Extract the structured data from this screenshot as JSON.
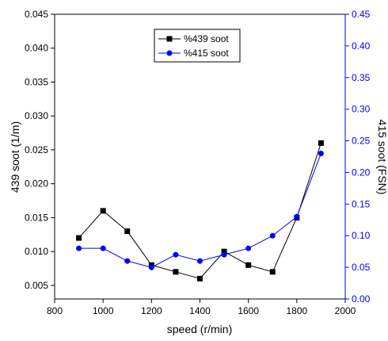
{
  "chart_data": {
    "type": "line",
    "title": "",
    "xlabel": "speed (r/min)",
    "ylabel_left": "439 soot (1/m)",
    "ylabel_right": "415 soot (FSN)",
    "xlim": [
      800,
      2000
    ],
    "ylim_left": [
      0.003,
      0.045
    ],
    "ylim_right": [
      0.0,
      0.45
    ],
    "x_ticks": [
      "800",
      "1000",
      "1200",
      "1400",
      "1600",
      "1800",
      "2000"
    ],
    "y_left_ticks": [
      "0.005",
      "0.010",
      "0.015",
      "0.020",
      "0.025",
      "0.030",
      "0.035",
      "0.040",
      "0.045"
    ],
    "y_right_ticks": [
      "0.00",
      "0.05",
      "0.10",
      "0.15",
      "0.20",
      "0.25",
      "0.30",
      "0.35",
      "0.40",
      "0.45"
    ],
    "grid": false,
    "legend_position": "top-center",
    "x": [
      900,
      1000,
      1100,
      1200,
      1300,
      1400,
      1500,
      1600,
      1700,
      1800,
      1900
    ],
    "series": [
      {
        "name": "%439 soot",
        "axis": "left",
        "color": "#000000",
        "marker": "square",
        "values": [
          0.012,
          0.016,
          0.013,
          0.008,
          0.007,
          0.006,
          0.01,
          0.008,
          0.007,
          0.015,
          0.026
        ]
      },
      {
        "name": "%415 soot",
        "axis": "right",
        "color": "#0000ff",
        "marker": "circle",
        "values": [
          0.08,
          0.08,
          0.06,
          0.05,
          0.07,
          0.06,
          0.07,
          0.08,
          0.1,
          0.13,
          0.23
        ]
      }
    ],
    "right_axis_color": "#0000ff"
  }
}
